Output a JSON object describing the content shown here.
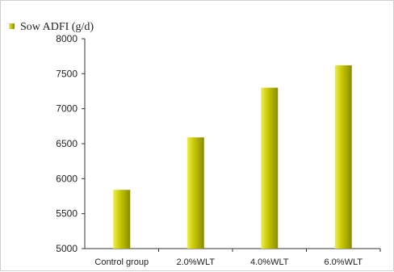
{
  "chart_data": {
    "type": "bar",
    "categories": [
      "Control group",
      "2.0%WLT",
      "4.0%WLT",
      "6.0%WLT"
    ],
    "series": [
      {
        "name": "Sow ADFI (g/d)",
        "values": [
          5840,
          6590,
          7300,
          7620
        ]
      }
    ],
    "ylim": [
      5000,
      8000
    ],
    "yticks": [
      5000,
      5500,
      6000,
      6500,
      7000,
      7500,
      8000
    ],
    "legend_position": "top-left",
    "grid": false,
    "colors": {
      "bar_light": "#eeee55",
      "bar_mid": "#c8c800",
      "bar_dark": "#8a8a00",
      "axis": "#333333"
    }
  }
}
